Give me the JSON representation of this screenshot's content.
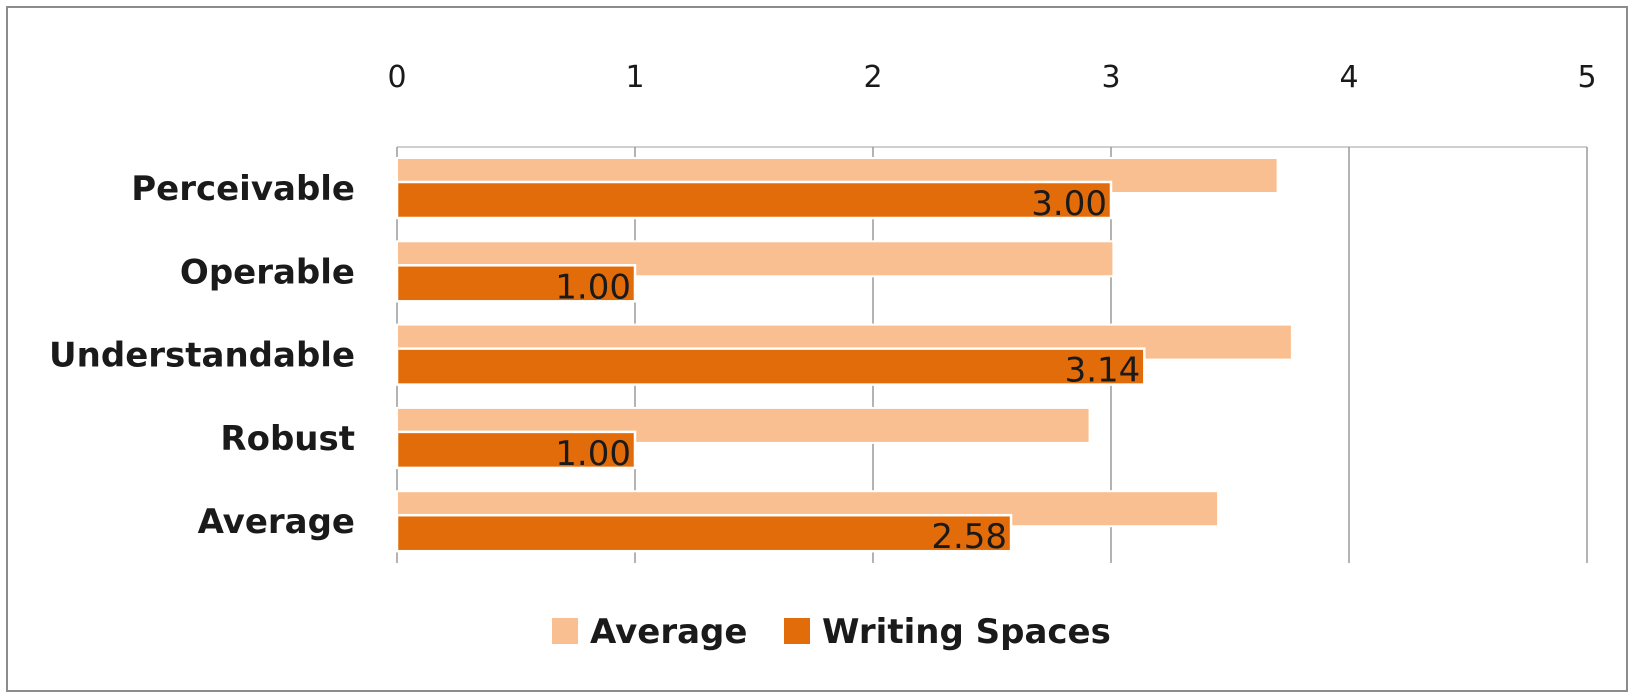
{
  "chart_data": {
    "type": "bar",
    "orientation": "horizontal",
    "categories": [
      "Perceivable",
      "Operable",
      "Understandable",
      "Robust",
      "Average"
    ],
    "series": [
      {
        "name": "Average",
        "values": [
          3.7,
          3.01,
          3.76,
          2.91,
          3.45
        ],
        "color": "#f9bf90"
      },
      {
        "name": "Writing Spaces",
        "values": [
          3.0,
          1.0,
          3.14,
          1.0,
          2.58
        ],
        "color": "#e36c0a",
        "data_labels": [
          "3.00",
          "1.00",
          "3.14",
          "1.00",
          "2.58"
        ]
      }
    ],
    "xlim": [
      0,
      5
    ],
    "x_ticks": [
      "0",
      "1",
      "2",
      "3",
      "4",
      "5"
    ],
    "x_axis_position": "top",
    "grid": true,
    "legend": "bottom"
  }
}
